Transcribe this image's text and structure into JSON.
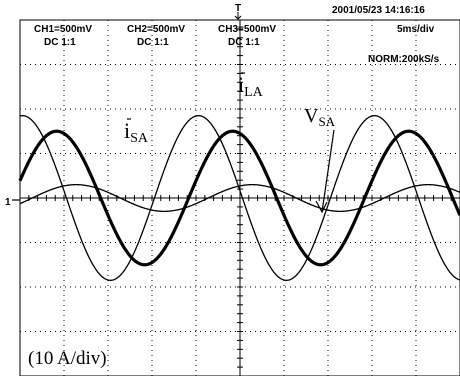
{
  "header": {
    "timestamp": "2001/05/23  14:16:16",
    "timebase": "5ms/div",
    "sample_rate": "NORM:200kS/s",
    "channels": [
      {
        "scale": "CH1=500mV",
        "coupling": "DC  1:1"
      },
      {
        "scale": "CH2=500mV",
        "coupling": "DC  1:1"
      },
      {
        "scale": "CH3=500mV",
        "coupling": "DC  1:1"
      }
    ]
  },
  "markers": {
    "trigger": "T",
    "ground": "1"
  },
  "chart_data": {
    "type": "line",
    "title": "",
    "xlabel": "",
    "ylabel": "",
    "grid": true,
    "divisions": {
      "x": 10,
      "y": 8
    },
    "xlim": [
      0,
      50
    ],
    "ylim": [
      -40,
      40
    ],
    "x_unit": "ms",
    "y_unit": "A",
    "scale_annotation": "(10 A/div)",
    "series": [
      {
        "name": "i_LA",
        "amplitude": 18.5,
        "phase_deg": 85,
        "frequency_hz": 50,
        "thick": false
      },
      {
        "name": "i_SA",
        "amplitude": 15.0,
        "phase_deg": 15,
        "frequency_hz": 50,
        "thick": true
      },
      {
        "name": "V_SA",
        "amplitude": 3.0,
        "phase_deg": -25,
        "frequency_hz": 50,
        "thick": false
      }
    ],
    "annotations": [
      {
        "series": "i_LA",
        "base": "i",
        "sub": "LA"
      },
      {
        "series": "i_SA",
        "base": "i",
        "sub": "SA"
      },
      {
        "series": "V_SA",
        "base": "V",
        "sub": "SA"
      }
    ]
  }
}
